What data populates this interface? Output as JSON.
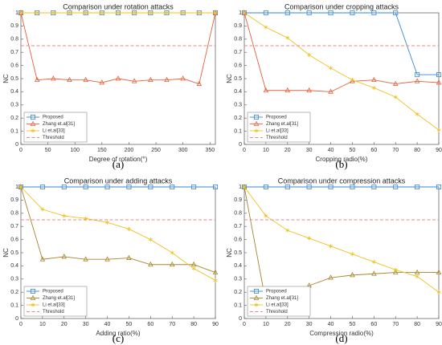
{
  "chart_data": [
    {
      "type": "line",
      "title": "Comparison under rotation attacks",
      "caption": "(a)",
      "xlabel": "Degree of rotation(°)",
      "ylabel": "NC",
      "x": [
        0,
        30,
        60,
        90,
        120,
        150,
        180,
        210,
        240,
        270,
        300,
        330,
        360
      ],
      "xlim": [
        0,
        360
      ],
      "xticks": [
        0,
        50,
        100,
        150,
        200,
        250,
        300,
        350
      ],
      "ylim": [
        0,
        1
      ],
      "yticks": [
        0,
        0.1,
        0.2,
        0.3,
        0.4,
        0.5,
        0.6,
        0.7,
        0.8,
        0.9,
        1
      ],
      "legend": "lower left",
      "series": [
        {
          "name": "Proposed",
          "color": "#3a86d4",
          "marker": "square",
          "values": [
            1,
            1,
            1,
            1,
            1,
            1,
            1,
            1,
            1,
            1,
            1,
            1,
            1
          ]
        },
        {
          "name": "Zhang et.al[31]",
          "color": "#e5603a",
          "marker": "triangle",
          "values": [
            1,
            0.49,
            0.5,
            0.49,
            0.49,
            0.47,
            0.5,
            0.48,
            0.49,
            0.49,
            0.5,
            0.46,
            1
          ]
        },
        {
          "name": "Li et.al[33]",
          "color": "#f0c020",
          "marker": "star",
          "values": [
            1,
            1,
            1,
            1,
            1,
            1,
            1,
            1,
            1,
            1,
            1,
            1,
            1
          ]
        },
        {
          "name": "Threshold",
          "color": "#e88a8a",
          "marker": "none",
          "dash": true,
          "values": [
            0.75,
            0.75,
            0.75,
            0.75,
            0.75,
            0.75,
            0.75,
            0.75,
            0.75,
            0.75,
            0.75,
            0.75,
            0.75
          ]
        }
      ]
    },
    {
      "type": "line",
      "title": "Comparison under cropping attacks",
      "caption": "(b)",
      "xlabel": "Cropping radio(%)",
      "ylabel": "NC",
      "x": [
        0,
        10,
        20,
        30,
        40,
        50,
        60,
        70,
        80,
        90
      ],
      "xlim": [
        0,
        90
      ],
      "xticks": [
        0,
        10,
        20,
        30,
        40,
        50,
        60,
        70,
        80,
        90
      ],
      "ylim": [
        0,
        1
      ],
      "yticks": [
        0,
        0.1,
        0.2,
        0.3,
        0.4,
        0.5,
        0.6,
        0.7,
        0.8,
        0.9,
        1
      ],
      "legend": "lower left",
      "series": [
        {
          "name": "Proposed",
          "color": "#3a86d4",
          "marker": "square",
          "values": [
            1,
            1,
            1,
            1,
            1,
            1,
            1,
            1,
            0.53,
            0.53
          ]
        },
        {
          "name": "Zhang et.al[31]",
          "color": "#e5603a",
          "marker": "triangle",
          "values": [
            1,
            0.41,
            0.41,
            0.41,
            0.4,
            0.48,
            0.49,
            0.46,
            0.48,
            0.47
          ]
        },
        {
          "name": "Li et.al[33]",
          "color": "#f0c020",
          "marker": "star",
          "values": [
            1,
            0.89,
            0.81,
            0.68,
            0.58,
            0.49,
            0.43,
            0.36,
            0.23,
            0.11
          ]
        },
        {
          "name": "Threshold",
          "color": "#e88a8a",
          "marker": "none",
          "dash": true,
          "values": [
            0.75,
            0.75,
            0.75,
            0.75,
            0.75,
            0.75,
            0.75,
            0.75,
            0.75,
            0.75
          ]
        }
      ]
    },
    {
      "type": "line",
      "title": "Comparison under adding attacks",
      "caption": "(c)",
      "xlabel": "Adding ratio(%)",
      "ylabel": "NC",
      "x": [
        0,
        10,
        20,
        30,
        40,
        50,
        60,
        70,
        80,
        90
      ],
      "xlim": [
        0,
        90
      ],
      "xticks": [
        0,
        10,
        20,
        30,
        40,
        50,
        60,
        70,
        80,
        90
      ],
      "ylim": [
        0,
        1
      ],
      "yticks": [
        0,
        0.1,
        0.2,
        0.3,
        0.4,
        0.5,
        0.6,
        0.7,
        0.8,
        0.9,
        1
      ],
      "legend": "lower left",
      "series": [
        {
          "name": "Proposed",
          "color": "#3a86d4",
          "marker": "square",
          "values": [
            1,
            1,
            1,
            1,
            1,
            1,
            1,
            1,
            1,
            1
          ]
        },
        {
          "name": "Zhang et.al[31]",
          "color": "#a8842c",
          "marker": "triangle",
          "values": [
            1,
            0.45,
            0.47,
            0.45,
            0.45,
            0.46,
            0.41,
            0.41,
            0.41,
            0.35
          ]
        },
        {
          "name": "Li et.al[33]",
          "color": "#f0c020",
          "marker": "star",
          "values": [
            1,
            0.83,
            0.78,
            0.76,
            0.73,
            0.68,
            0.6,
            0.5,
            0.38,
            0.29
          ]
        },
        {
          "name": "Threshold",
          "color": "#e88a8a",
          "marker": "none",
          "dash": true,
          "values": [
            0.75,
            0.75,
            0.75,
            0.75,
            0.75,
            0.75,
            0.75,
            0.75,
            0.75,
            0.75
          ]
        }
      ]
    },
    {
      "type": "line",
      "title": "Comparison under compression attacks",
      "caption": "(d)",
      "xlabel": "Compression radio(%)",
      "ylabel": "NC",
      "x": [
        0,
        10,
        20,
        30,
        40,
        50,
        60,
        70,
        80,
        90
      ],
      "xlim": [
        0,
        90
      ],
      "xticks": [
        0,
        10,
        20,
        30,
        40,
        50,
        60,
        70,
        80,
        90
      ],
      "ylim": [
        0,
        1
      ],
      "yticks": [
        0,
        0.1,
        0.2,
        0.3,
        0.4,
        0.5,
        0.6,
        0.7,
        0.8,
        0.9,
        1
      ],
      "legend": "lower left",
      "series": [
        {
          "name": "Proposed",
          "color": "#3a86d4",
          "marker": "square",
          "values": [
            1,
            1,
            1,
            1,
            1,
            1,
            1,
            1,
            1,
            1
          ]
        },
        {
          "name": "Zhang et.al[31]",
          "color": "#a8842c",
          "marker": "triangle",
          "values": [
            1,
            0.12,
            0.15,
            0.25,
            0.31,
            0.33,
            0.34,
            0.35,
            0.35,
            0.35
          ]
        },
        {
          "name": "Li et.al[33]",
          "color": "#f0c020",
          "marker": "star",
          "values": [
            1,
            0.78,
            0.67,
            0.61,
            0.55,
            0.49,
            0.43,
            0.37,
            0.32,
            0.2
          ]
        },
        {
          "name": "Threshold",
          "color": "#e88a8a",
          "marker": "none",
          "dash": true,
          "values": [
            0.75,
            0.75,
            0.75,
            0.75,
            0.75,
            0.75,
            0.75,
            0.75,
            0.75,
            0.75
          ]
        }
      ]
    }
  ]
}
